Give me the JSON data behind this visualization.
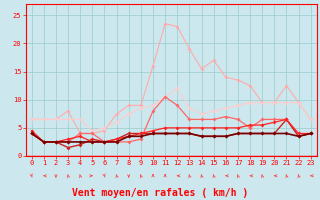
{
  "x": [
    0,
    1,
    2,
    3,
    4,
    5,
    6,
    7,
    8,
    9,
    10,
    11,
    12,
    13,
    14,
    15,
    16,
    17,
    18,
    19,
    20,
    21,
    22,
    23
  ],
  "series": [
    {
      "color": "#ffaaaa",
      "lw": 0.8,
      "marker": "D",
      "ms": 2.0,
      "y": [
        6.5,
        6.5,
        6.5,
        8.0,
        4.0,
        4.0,
        4.5,
        7.5,
        9.0,
        9.0,
        16.0,
        23.5,
        23.0,
        19.0,
        15.5,
        17.0,
        14.0,
        13.5,
        12.5,
        9.5,
        9.5,
        12.5,
        9.5,
        6.5
      ]
    },
    {
      "color": "#ffcccc",
      "lw": 0.8,
      "marker": "D",
      "ms": 2.0,
      "y": [
        6.5,
        6.5,
        6.5,
        6.5,
        6.5,
        4.5,
        5.0,
        6.0,
        7.5,
        8.5,
        9.0,
        10.5,
        12.0,
        8.5,
        7.5,
        8.0,
        8.5,
        9.0,
        9.5,
        9.5,
        9.5,
        9.5,
        9.5,
        6.5
      ]
    },
    {
      "color": "#ff6666",
      "lw": 0.9,
      "marker": "D",
      "ms": 2.0,
      "y": [
        4.0,
        2.5,
        2.5,
        2.5,
        4.0,
        4.0,
        2.5,
        2.5,
        2.5,
        3.0,
        8.0,
        10.5,
        9.0,
        6.5,
        6.5,
        6.5,
        7.0,
        6.5,
        5.0,
        6.5,
        6.5,
        6.5,
        3.5,
        4.0
      ]
    },
    {
      "color": "#cc2222",
      "lw": 1.0,
      "marker": "D",
      "ms": 2.0,
      "y": [
        4.0,
        2.5,
        2.5,
        1.5,
        2.0,
        3.0,
        2.5,
        3.0,
        4.0,
        4.0,
        4.0,
        4.0,
        4.0,
        4.0,
        3.5,
        3.5,
        3.5,
        4.0,
        4.0,
        4.0,
        4.0,
        6.5,
        3.5,
        4.0
      ]
    },
    {
      "color": "#ff2222",
      "lw": 0.9,
      "marker": "D",
      "ms": 2.0,
      "y": [
        4.5,
        2.5,
        2.5,
        3.0,
        3.5,
        2.5,
        2.5,
        3.0,
        3.5,
        4.0,
        4.5,
        5.0,
        5.0,
        5.0,
        5.0,
        5.0,
        5.0,
        5.0,
        5.5,
        5.5,
        6.0,
        6.5,
        4.0,
        4.0
      ]
    },
    {
      "color": "#770000",
      "lw": 1.2,
      "marker": "D",
      "ms": 2.0,
      "y": [
        4.0,
        2.5,
        2.5,
        2.5,
        2.5,
        2.5,
        2.5,
        2.5,
        3.5,
        3.5,
        4.0,
        4.0,
        4.0,
        4.0,
        3.5,
        3.5,
        3.5,
        4.0,
        4.0,
        4.0,
        4.0,
        4.0,
        3.5,
        4.0
      ]
    }
  ],
  "xlabel": "Vent moyen/en rafales ( km/h )",
  "xlim": [
    -0.5,
    23.5
  ],
  "ylim": [
    0,
    27
  ],
  "yticks": [
    0,
    5,
    10,
    15,
    20,
    25
  ],
  "xticks": [
    0,
    1,
    2,
    3,
    4,
    5,
    6,
    7,
    8,
    9,
    10,
    11,
    12,
    13,
    14,
    15,
    16,
    17,
    18,
    19,
    20,
    21,
    22,
    23
  ],
  "bg_color": "#cce8ee",
  "grid_color": "#99cccc",
  "tick_color": "#ff0000",
  "label_color": "#ff0000",
  "xlabel_fontsize": 7,
  "tick_fontsize": 5,
  "arrow_angles": [
    45,
    270,
    0,
    225,
    225,
    90,
    45,
    225,
    0,
    225,
    180,
    180,
    270,
    225,
    225,
    225,
    270,
    225,
    270,
    225,
    270,
    225,
    225,
    270
  ]
}
